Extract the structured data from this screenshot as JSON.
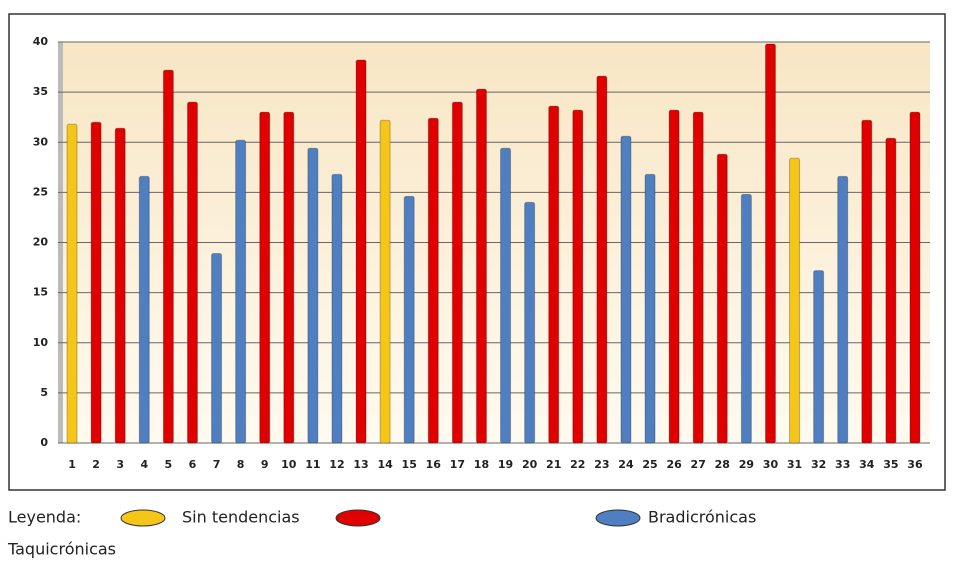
{
  "chart_data": {
    "type": "bar",
    "categories": [
      "1",
      "2",
      "3",
      "4",
      "5",
      "6",
      "7",
      "8",
      "9",
      "10",
      "11",
      "12",
      "13",
      "14",
      "15",
      "16",
      "17",
      "18",
      "19",
      "20",
      "21",
      "22",
      "23",
      "24",
      "25",
      "26",
      "27",
      "28",
      "29",
      "30",
      "31",
      "32",
      "33",
      "34",
      "35",
      "36"
    ],
    "series": [
      {
        "name": "Sin tendencias",
        "color": "#f5c518",
        "values": [
          31.8,
          null,
          null,
          null,
          null,
          null,
          null,
          null,
          null,
          null,
          null,
          null,
          null,
          32.2,
          null,
          null,
          null,
          null,
          null,
          null,
          null,
          null,
          null,
          null,
          null,
          null,
          null,
          null,
          null,
          null,
          28.4,
          null,
          null,
          null,
          null,
          null
        ]
      },
      {
        "name": "Taquicrónicas",
        "color": "#e00000",
        "values": [
          null,
          32,
          31.4,
          null,
          37.2,
          34,
          null,
          null,
          33,
          33,
          null,
          null,
          38.2,
          null,
          null,
          32.4,
          34,
          35.3,
          null,
          null,
          33.6,
          33.2,
          36.6,
          null,
          null,
          33.2,
          33,
          28.8,
          null,
          39.8,
          null,
          null,
          null,
          32.2,
          30.4,
          33
        ]
      },
      {
        "name": "Bradicrónicas",
        "color": "#4f7fc0",
        "values": [
          null,
          null,
          null,
          26.6,
          null,
          null,
          18.9,
          30.2,
          null,
          null,
          29.4,
          26.8,
          null,
          null,
          24.6,
          null,
          null,
          null,
          29.4,
          24,
          null,
          null,
          null,
          30.6,
          26.8,
          null,
          null,
          null,
          24.8,
          null,
          null,
          17.2,
          26.6,
          null,
          null,
          null
        ]
      }
    ],
    "legend_title": "Leyenda:",
    "ylim": [
      0,
      40
    ],
    "yticks": [
      0,
      5,
      10,
      15,
      20,
      25,
      30,
      35,
      40
    ],
    "grid": true
  }
}
